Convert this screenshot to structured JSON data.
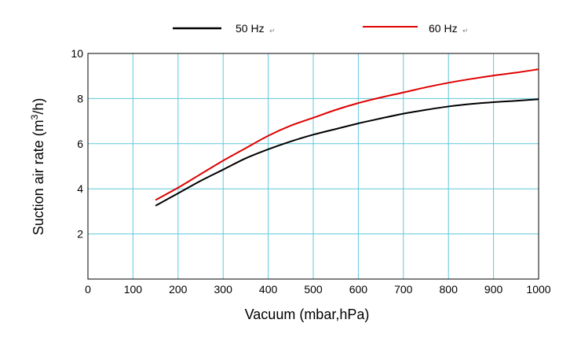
{
  "chart_data": {
    "type": "line",
    "xlabel": "Vacuum (mbar,hPa)",
    "ylabel_main": "Suction air rate (m",
    "ylabel_sup": "3",
    "ylabel_end": "/h)",
    "xlim": [
      0,
      1000
    ],
    "ylim": [
      0,
      10
    ],
    "x_ticks": [
      0,
      100,
      200,
      300,
      400,
      500,
      600,
      700,
      800,
      900,
      1000
    ],
    "y_ticks": [
      2,
      4,
      6,
      8,
      10
    ],
    "grid": true,
    "legend_position": "top",
    "series": [
      {
        "name": "50 Hz",
        "color": "#000000",
        "x": [
          150,
          200,
          250,
          300,
          350,
          400,
          450,
          500,
          550,
          600,
          650,
          700,
          750,
          800,
          850,
          900,
          950,
          1000
        ],
        "y": [
          3.25,
          3.8,
          4.35,
          4.85,
          5.35,
          5.75,
          6.1,
          6.4,
          6.65,
          6.9,
          7.12,
          7.33,
          7.5,
          7.65,
          7.76,
          7.84,
          7.9,
          7.97
        ]
      },
      {
        "name": "60 Hz",
        "color": "#e00000",
        "x": [
          150,
          200,
          250,
          300,
          350,
          400,
          450,
          500,
          550,
          600,
          650,
          700,
          750,
          800,
          850,
          900,
          950,
          1000
        ],
        "y": [
          3.5,
          4.05,
          4.65,
          5.25,
          5.8,
          6.35,
          6.8,
          7.15,
          7.5,
          7.8,
          8.05,
          8.27,
          8.5,
          8.7,
          8.87,
          9.02,
          9.15,
          9.3
        ]
      }
    ]
  }
}
